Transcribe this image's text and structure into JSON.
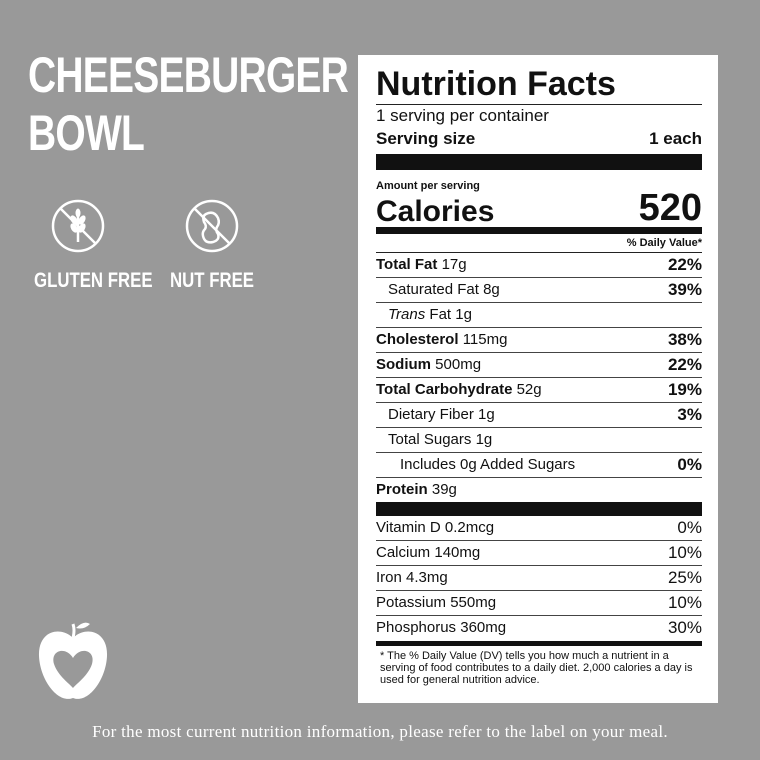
{
  "product": {
    "title_lines": [
      "CHEESEBURGER",
      "BOWL"
    ],
    "badges": [
      "GLUTEN FREE",
      "NUT FREE"
    ]
  },
  "label": {
    "title": "Nutrition Facts",
    "servings": "1 serving per container",
    "serving_size_label": "Serving size",
    "serving_size": "1 each",
    "amount_per_serving": "Amount per serving",
    "calories_label": "Calories",
    "calories": "520",
    "dv_header": "% Daily Value*",
    "nutrients": [
      {
        "name": "Total Fat",
        "amount": "17g",
        "dv": "22%"
      },
      {
        "name": "Saturated Fat",
        "amount": "8g",
        "dv": "39%"
      },
      {
        "name_italic": "Trans",
        "name": "Fat",
        "amount": "1g"
      },
      {
        "name": "Cholesterol",
        "amount": "115mg",
        "dv": "38%"
      },
      {
        "name": "Sodium",
        "amount": "500mg",
        "dv": "22%"
      },
      {
        "name": "Total Carbohydrate",
        "amount": "52g",
        "dv": "19%"
      },
      {
        "name": "Dietary Fiber",
        "amount": "1g",
        "dv": "3%"
      },
      {
        "name": "Total Sugars",
        "amount": "1g"
      },
      {
        "name": "Includes 0g Added Sugars",
        "dv": "0%"
      },
      {
        "name": "Protein",
        "amount": "39g"
      }
    ],
    "vitamins": [
      {
        "name": "Vitamin D",
        "amount": "0.2mcg",
        "dv": "0%"
      },
      {
        "name": "Calcium",
        "amount": "140mg",
        "dv": "10%"
      },
      {
        "name": "Iron",
        "amount": "4.3mg",
        "dv": "25%"
      },
      {
        "name": "Potassium",
        "amount": "550mg",
        "dv": "10%"
      },
      {
        "name": "Phosphorus",
        "amount": "360mg",
        "dv": "30%"
      }
    ],
    "footnote": "* The % Daily Value (DV) tells you how much a nutrient in a serving of food contributes to a daily diet. 2,000 calories a day is used for general nutrition advice."
  },
  "footer": "For the most current nutrition information, please refer to the label on your meal."
}
